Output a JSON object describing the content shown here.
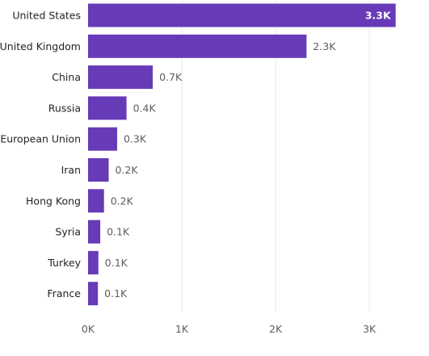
{
  "chart_data": {
    "type": "bar",
    "orientation": "horizontal",
    "categories": [
      "United States",
      "United Kingdom",
      "China",
      "Russia",
      "European Union",
      "Iran",
      "Hong Kong",
      "Syria",
      "Turkey",
      "France"
    ],
    "values": [
      3280,
      2330,
      690,
      410,
      310,
      220,
      170,
      130,
      110,
      105
    ],
    "value_labels": [
      "3.3K",
      "2.3K",
      "0.7K",
      "0.4K",
      "0.3K",
      "0.2K",
      "0.2K",
      "0.1K",
      "0.1K",
      "0.1K"
    ],
    "xticks": [
      0,
      1000,
      2000,
      3000
    ],
    "xtick_labels": [
      "0K",
      "1K",
      "2K",
      "3K"
    ],
    "xlim": [
      0,
      3300
    ],
    "grid": true,
    "legend": "none",
    "bar_color": "#673ab7"
  }
}
